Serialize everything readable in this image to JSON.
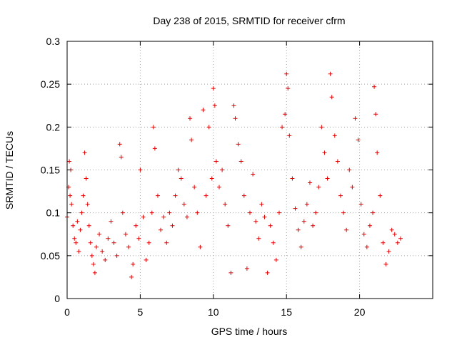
{
  "chart_data": {
    "type": "scatter",
    "title": "Day 238 of 2015, SRMTID for receiver cfrm",
    "xlabel": "GPS time / hours",
    "ylabel": "SRMTID / TECUs",
    "xlim": [
      0,
      25
    ],
    "ylim": [
      0,
      0.3
    ],
    "x_ticks": [
      0,
      5,
      10,
      15,
      20
    ],
    "x_tick_labels": [
      "0",
      "5",
      "10",
      "15",
      "20"
    ],
    "y_ticks": [
      0,
      0.05,
      0.1,
      0.15,
      0.2,
      0.25,
      0.3
    ],
    "y_tick_labels": [
      "0",
      "0.05",
      "0.1",
      "0.15",
      "0.2",
      "0.25",
      "0.3"
    ],
    "grid": true,
    "marker": "+",
    "series": [
      {
        "name": "SRMTID",
        "color": "#e00000",
        "x_range": [
          0,
          22.8
        ],
        "points": [
          [
            0.0,
            0.095
          ],
          [
            0.1,
            0.13
          ],
          [
            0.15,
            0.16
          ],
          [
            0.2,
            0.12
          ],
          [
            0.25,
            0.15
          ],
          [
            0.3,
            0.11
          ],
          [
            0.4,
            0.085
          ],
          [
            0.5,
            0.07
          ],
          [
            0.6,
            0.065
          ],
          [
            0.7,
            0.09
          ],
          [
            0.8,
            0.055
          ],
          [
            0.9,
            0.08
          ],
          [
            1.0,
            0.1
          ],
          [
            1.1,
            0.12
          ],
          [
            1.2,
            0.17
          ],
          [
            1.3,
            0.14
          ],
          [
            1.4,
            0.11
          ],
          [
            1.5,
            0.085
          ],
          [
            1.6,
            0.065
          ],
          [
            1.7,
            0.05
          ],
          [
            1.8,
            0.04
          ],
          [
            1.9,
            0.03
          ],
          [
            2.0,
            0.06
          ],
          [
            2.2,
            0.075
          ],
          [
            2.4,
            0.055
          ],
          [
            2.6,
            0.045
          ],
          [
            2.8,
            0.07
          ],
          [
            3.0,
            0.09
          ],
          [
            3.2,
            0.065
          ],
          [
            3.4,
            0.05
          ],
          [
            3.6,
            0.18
          ],
          [
            3.7,
            0.165
          ],
          [
            3.8,
            0.1
          ],
          [
            4.0,
            0.075
          ],
          [
            4.2,
            0.06
          ],
          [
            4.4,
            0.025
          ],
          [
            4.5,
            0.04
          ],
          [
            4.7,
            0.085
          ],
          [
            4.9,
            0.07
          ],
          [
            5.0,
            0.15
          ],
          [
            5.2,
            0.095
          ],
          [
            5.4,
            0.045
          ],
          [
            5.6,
            0.065
          ],
          [
            5.8,
            0.1
          ],
          [
            5.9,
            0.2
          ],
          [
            6.0,
            0.175
          ],
          [
            6.2,
            0.12
          ],
          [
            6.4,
            0.08
          ],
          [
            6.6,
            0.095
          ],
          [
            6.8,
            0.065
          ],
          [
            7.0,
            0.1
          ],
          [
            7.2,
            0.085
          ],
          [
            7.4,
            0.12
          ],
          [
            7.6,
            0.15
          ],
          [
            7.8,
            0.14
          ],
          [
            8.0,
            0.11
          ],
          [
            8.2,
            0.095
          ],
          [
            8.4,
            0.21
          ],
          [
            8.5,
            0.185
          ],
          [
            8.7,
            0.13
          ],
          [
            8.9,
            0.1
          ],
          [
            9.1,
            0.06
          ],
          [
            9.3,
            0.22
          ],
          [
            9.5,
            0.12
          ],
          [
            9.7,
            0.2
          ],
          [
            9.9,
            0.14
          ],
          [
            10.0,
            0.245
          ],
          [
            10.1,
            0.225
          ],
          [
            10.2,
            0.16
          ],
          [
            10.4,
            0.13
          ],
          [
            10.6,
            0.15
          ],
          [
            10.8,
            0.11
          ],
          [
            11.0,
            0.085
          ],
          [
            11.2,
            0.03
          ],
          [
            11.4,
            0.225
          ],
          [
            11.5,
            0.21
          ],
          [
            11.7,
            0.18
          ],
          [
            11.9,
            0.16
          ],
          [
            12.1,
            0.12
          ],
          [
            12.3,
            0.035
          ],
          [
            12.5,
            0.1
          ],
          [
            12.7,
            0.145
          ],
          [
            12.9,
            0.09
          ],
          [
            13.1,
            0.07
          ],
          [
            13.3,
            0.11
          ],
          [
            13.5,
            0.095
          ],
          [
            13.7,
            0.03
          ],
          [
            13.9,
            0.085
          ],
          [
            14.1,
            0.065
          ],
          [
            14.3,
            0.045
          ],
          [
            14.5,
            0.1
          ],
          [
            14.7,
            0.2
          ],
          [
            14.9,
            0.215
          ],
          [
            15.0,
            0.262
          ],
          [
            15.1,
            0.245
          ],
          [
            15.2,
            0.19
          ],
          [
            15.4,
            0.14
          ],
          [
            15.6,
            0.105
          ],
          [
            15.8,
            0.08
          ],
          [
            16.0,
            0.06
          ],
          [
            16.2,
            0.09
          ],
          [
            16.4,
            0.11
          ],
          [
            16.6,
            0.135
          ],
          [
            16.8,
            0.085
          ],
          [
            17.0,
            0.1
          ],
          [
            17.2,
            0.13
          ],
          [
            17.4,
            0.2
          ],
          [
            17.6,
            0.17
          ],
          [
            17.8,
            0.14
          ],
          [
            18.0,
            0.262
          ],
          [
            18.1,
            0.235
          ],
          [
            18.3,
            0.19
          ],
          [
            18.5,
            0.16
          ],
          [
            18.7,
            0.12
          ],
          [
            18.9,
            0.1
          ],
          [
            19.1,
            0.08
          ],
          [
            19.3,
            0.15
          ],
          [
            19.5,
            0.13
          ],
          [
            19.7,
            0.21
          ],
          [
            19.9,
            0.185
          ],
          [
            20.1,
            0.11
          ],
          [
            20.3,
            0.075
          ],
          [
            20.5,
            0.06
          ],
          [
            20.7,
            0.085
          ],
          [
            20.9,
            0.1
          ],
          [
            21.0,
            0.247
          ],
          [
            21.1,
            0.215
          ],
          [
            21.2,
            0.17
          ],
          [
            21.4,
            0.12
          ],
          [
            21.6,
            0.065
          ],
          [
            21.8,
            0.04
          ],
          [
            22.0,
            0.055
          ],
          [
            22.2,
            0.08
          ],
          [
            22.4,
            0.075
          ],
          [
            22.6,
            0.065
          ],
          [
            22.8,
            0.07
          ]
        ]
      }
    ]
  }
}
